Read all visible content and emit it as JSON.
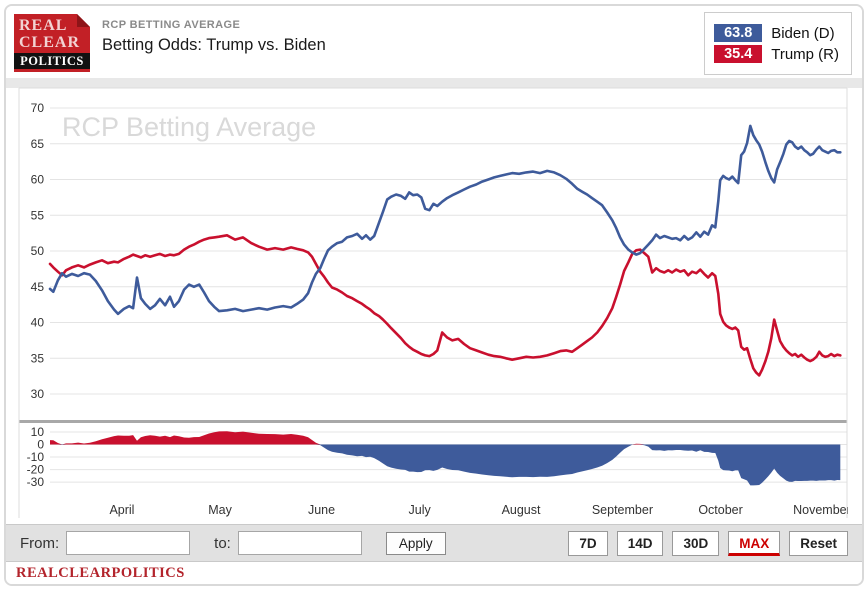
{
  "header": {
    "kicker": "RCP BETTING AVERAGE",
    "title": "Betting Odds: Trump vs. Biden",
    "logo": {
      "line1": "REAL",
      "line2": "CLEAR",
      "line3": "POLITICS"
    }
  },
  "legend": {
    "items": [
      {
        "value": "63.8",
        "label": "Biden (D)"
      },
      {
        "value": "35.4",
        "label": "Trump (R)"
      }
    ]
  },
  "controls": {
    "from_label": "From:",
    "from_value": "",
    "to_label": "to:",
    "to_value": "",
    "apply_label": "Apply",
    "range_buttons": [
      {
        "label": "7D",
        "active": false
      },
      {
        "label": "14D",
        "active": false
      },
      {
        "label": "30D",
        "active": false
      },
      {
        "label": "MAX",
        "active": true
      },
      {
        "label": "Reset",
        "active": false
      }
    ]
  },
  "footer": {
    "brand": "REALCLEARPOLITICS"
  },
  "chart_data": {
    "type": "line",
    "title": "RCP Betting Average",
    "watermark": "RCP Betting Average",
    "x_axis": {
      "start_date": "2020-03-10",
      "unit": "days since 2020-03-10",
      "months": [
        {
          "label": "April",
          "t": 22
        },
        {
          "label": "May",
          "t": 52
        },
        {
          "label": "June",
          "t": 83
        },
        {
          "label": "July",
          "t": 113
        },
        {
          "label": "August",
          "t": 144
        },
        {
          "label": "September",
          "t": 175
        },
        {
          "label": "October",
          "t": 205
        },
        {
          "label": "November",
          "t": 236
        }
      ]
    },
    "y_axis": {
      "min": 30,
      "max": 70,
      "ticks": [
        70,
        65,
        60,
        55,
        50,
        45,
        40,
        35,
        30
      ]
    },
    "spread_axis": {
      "ticks": [
        10,
        0,
        -10,
        -20,
        -30
      ],
      "definition": "Trump minus Biden, red above 0, blue below 0"
    },
    "t": [
      0,
      1,
      2.4,
      3.7,
      4.9,
      6.7,
      8.6,
      10.4,
      12.2,
      14,
      15.9,
      17.7,
      19.6,
      20.8,
      22.6,
      24.2,
      25.4,
      26.6,
      27.8,
      29.1,
      30.6,
      32.1,
      33.6,
      35.2,
      36.7,
      37.9,
      39.4,
      41,
      42.5,
      44,
      45.6,
      47.1,
      48.6,
      50.2,
      51.7,
      54.1,
      56.6,
      59,
      61.5,
      63.9,
      66.4,
      68.8,
      71.3,
      73.7,
      75.5,
      77.4,
      78.9,
      80.1,
      81.3,
      82.6,
      83.8,
      85,
      86.2,
      87.8,
      89.3,
      90.8,
      92.4,
      93.9,
      95.4,
      96.6,
      97.9,
      99.1,
      100.6,
      101.8,
      103.1,
      104.3,
      105.8,
      107.3,
      108.6,
      109.8,
      111,
      112.3,
      113.5,
      114.7,
      116,
      117.2,
      118.4,
      119.9,
      121.4,
      123,
      124.8,
      126.6,
      128.4,
      130.3,
      132.1,
      134,
      135.8,
      137.6,
      139.4,
      141.3,
      143.4,
      145.6,
      147.7,
      149.8,
      152,
      154.1,
      156,
      157.8,
      159.6,
      161.2,
      162.7,
      164.2,
      165.7,
      167.3,
      168.8,
      170.3,
      171.9,
      173.1,
      174.3,
      175.5,
      176.8,
      178,
      179.2,
      180.4,
      181.7,
      182.9,
      184.1,
      185.3,
      186.5,
      187.8,
      189,
      190.2,
      191.4,
      192.7,
      193.9,
      195.1,
      196.3,
      197.6,
      198.8,
      200,
      201.2,
      202.4,
      203.4,
      204.3,
      204.9,
      205.8,
      206.7,
      207.6,
      208.6,
      209.5,
      210.4,
      211.3,
      212.2,
      213.1,
      214.1,
      215,
      215.9,
      216.8,
      217.7,
      218.7,
      219.6,
      220.5,
      221.4,
      222.3,
      223.2,
      224.2,
      225.1,
      226,
      226.9,
      227.8,
      228.7,
      229.7,
      230.6,
      231.5,
      232.4,
      233.3,
      234.3,
      235.2,
      236.1,
      237,
      237.9,
      238.8,
      239.8,
      240.7,
      241.6
    ],
    "series": [
      {
        "name": "Biden (D)",
        "color": "#3e5b9b",
        "final": 63.8,
        "values": [
          44.7,
          44.3,
          45.9,
          46.9,
          46.4,
          46.8,
          46.5,
          46.9,
          46.7,
          45.8,
          44.5,
          43.0,
          41.8,
          41.2,
          41.9,
          42.3,
          42.0,
          46.3,
          43.4,
          42.6,
          41.9,
          42.4,
          43.3,
          42.4,
          43.6,
          42.2,
          43.0,
          44.6,
          45.3,
          45.0,
          45.3,
          44.2,
          43.0,
          42.2,
          41.6,
          41.7,
          41.9,
          41.6,
          41.8,
          42.0,
          41.8,
          42.1,
          42.3,
          42.1,
          42.6,
          43.2,
          44.1,
          45.6,
          46.8,
          47.6,
          48.9,
          50.1,
          50.6,
          51.1,
          51.3,
          51.9,
          52.1,
          52.4,
          51.7,
          52.2,
          51.6,
          52.1,
          54.0,
          55.5,
          57.2,
          57.6,
          57.9,
          57.7,
          57.3,
          58.2,
          57.8,
          57.9,
          57.5,
          55.9,
          55.7,
          56.6,
          56.3,
          56.9,
          57.4,
          57.8,
          58.2,
          58.6,
          59.0,
          59.3,
          59.7,
          60.0,
          60.3,
          60.5,
          60.7,
          60.9,
          60.8,
          61.0,
          61.1,
          60.9,
          61.2,
          61.0,
          60.6,
          60.1,
          59.4,
          58.7,
          58.3,
          57.9,
          57.4,
          56.9,
          56.4,
          55.4,
          54.3,
          53.2,
          51.9,
          50.9,
          50.2,
          49.8,
          49.5,
          49.7,
          50.3,
          50.9,
          51.5,
          52.3,
          51.8,
          52.1,
          51.9,
          51.7,
          51.8,
          51.5,
          52.1,
          51.6,
          51.9,
          52.6,
          52.0,
          52.7,
          52.3,
          53.6,
          53.3,
          57.0,
          59.9,
          60.5,
          60.2,
          60.0,
          60.4,
          59.9,
          59.5,
          63.4,
          63.9,
          65.1,
          67.5,
          66.2,
          65.5,
          64.9,
          63.9,
          62.4,
          61.2,
          60.2,
          59.6,
          61.4,
          62.4,
          63.6,
          64.9,
          65.4,
          65.2,
          64.6,
          64.3,
          64.6,
          64.1,
          63.8,
          63.4,
          63.6,
          64.2,
          64.6,
          64.1,
          63.9,
          63.7,
          64.0,
          64.1,
          63.8,
          63.8
        ]
      },
      {
        "name": "Trump (R)",
        "color": "#c9102e",
        "final": 35.4,
        "values": [
          48.2,
          47.7,
          47.1,
          46.6,
          47.3,
          47.7,
          48.0,
          47.7,
          48.1,
          48.4,
          48.7,
          48.3,
          48.5,
          48.4,
          48.9,
          49.2,
          49.5,
          49.3,
          49.1,
          49.4,
          49.2,
          49.4,
          49.6,
          49.3,
          49.5,
          49.4,
          49.6,
          50.2,
          50.6,
          50.9,
          51.3,
          51.6,
          51.8,
          51.9,
          52.0,
          52.2,
          51.6,
          51.9,
          51.1,
          50.6,
          50.2,
          50.4,
          50.2,
          50.5,
          50.3,
          50.1,
          49.8,
          49.2,
          48.2,
          47.1,
          46.4,
          45.6,
          44.9,
          44.6,
          44.2,
          43.7,
          43.4,
          43.0,
          42.6,
          42.2,
          41.8,
          41.3,
          40.9,
          40.4,
          39.8,
          39.2,
          38.5,
          37.8,
          37.1,
          36.6,
          36.2,
          35.9,
          35.6,
          35.4,
          35.3,
          35.6,
          36.1,
          38.6,
          37.9,
          37.5,
          37.7,
          37.0,
          36.4,
          36.1,
          35.8,
          35.5,
          35.3,
          35.2,
          35.0,
          34.8,
          35.0,
          35.2,
          35.1,
          35.2,
          35.4,
          35.7,
          36.0,
          36.1,
          35.9,
          36.4,
          36.9,
          37.4,
          37.9,
          38.6,
          39.5,
          40.6,
          42.0,
          43.6,
          45.3,
          47.2,
          48.4,
          49.6,
          50.1,
          50.2,
          49.7,
          49.2,
          47.0,
          47.6,
          47.2,
          47.0,
          47.3,
          47.0,
          47.4,
          47.1,
          47.3,
          46.6,
          47.1,
          46.9,
          47.4,
          46.8,
          46.3,
          46.9,
          46.5,
          44.0,
          41.2,
          40.1,
          39.6,
          39.3,
          39.1,
          39.3,
          38.9,
          36.6,
          36.2,
          36.4,
          34.9,
          33.6,
          33.0,
          32.6,
          33.4,
          34.6,
          35.9,
          37.8,
          40.4,
          38.9,
          37.4,
          36.6,
          36.1,
          35.7,
          35.4,
          35.6,
          35.2,
          35.5,
          35.1,
          34.8,
          34.6,
          34.8,
          35.2,
          35.9,
          35.4,
          35.2,
          35.3,
          35.6,
          35.3,
          35.5,
          35.4
        ]
      }
    ]
  }
}
